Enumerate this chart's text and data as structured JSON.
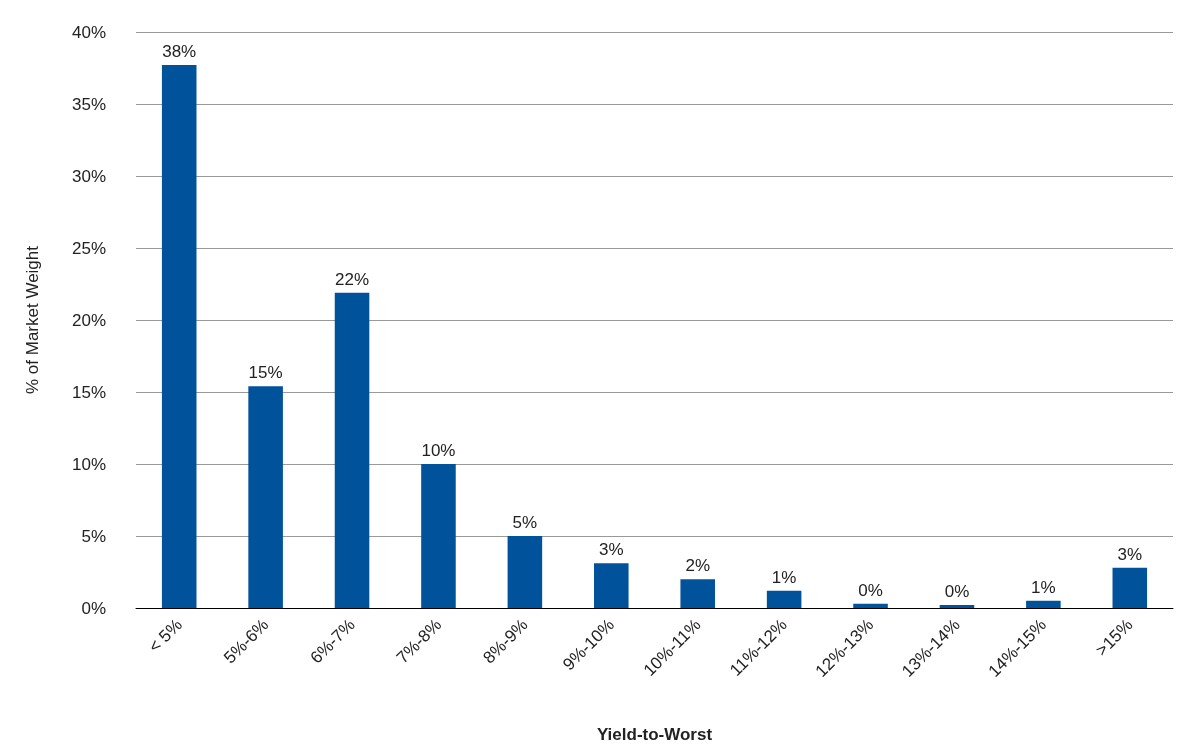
{
  "chart_data": {
    "type": "bar",
    "xlabel": "Yield-to-Worst",
    "ylabel": "% of Market Weight",
    "categories": [
      "< 5%",
      "5%-6%",
      "6%-7%",
      "7%-8%",
      "8%-9%",
      "9%-10%",
      "10%-11%",
      "11%-12%",
      "12%-13%",
      "13%-14%",
      "14%-15%",
      ">15%"
    ],
    "values": [
      37.7,
      15.4,
      21.9,
      10.0,
      5.0,
      3.1,
      2.0,
      1.2,
      0.3,
      0.2,
      0.5,
      2.8
    ],
    "value_labels": [
      "38%",
      "15%",
      "22%",
      "10%",
      "5%",
      "3%",
      "2%",
      "1%",
      "0%",
      "0%",
      "1%",
      "3%"
    ],
    "color": "#00539b",
    "ylim": [
      0,
      40
    ],
    "yticks": [
      {
        "value": 0,
        "label": "0%"
      },
      {
        "value": 5,
        "label": "5%"
      },
      {
        "value": 10,
        "label": "10%"
      },
      {
        "value": 15,
        "label": "15%"
      },
      {
        "value": 20,
        "label": "20%"
      },
      {
        "value": 25,
        "label": "25%"
      },
      {
        "value": 30,
        "label": "30%"
      },
      {
        "value": 35,
        "label": "35%"
      },
      {
        "value": 40,
        "label": "40%"
      }
    ],
    "grid": "y"
  }
}
